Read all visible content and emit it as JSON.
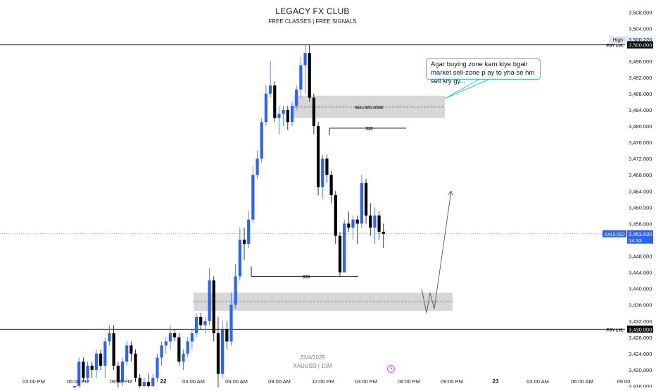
{
  "header": {
    "title": "LEGACY FX CLUB",
    "subtitle": "FREE CLASSES | FREE SIGNALS"
  },
  "footer": {
    "date": "22/4/2025",
    "symbol": "XAUUSD | 15M"
  },
  "colors": {
    "bull": "#2962ff",
    "bear": "#000000",
    "zone": "#c9c9c9",
    "callout_border": "#26c6da",
    "price_line": "#2962ff",
    "axis_text": "#131722"
  },
  "icons": {
    "footer_badge": "lightning-icon"
  },
  "chart_data": {
    "type": "candlestick",
    "symbol": "XAUUSD",
    "timeframe": "15M",
    "ylim": [
      3413,
      3510
    ],
    "y_ticks": [
      3416,
      3420,
      3424,
      3428,
      3432,
      3436,
      3440,
      3444,
      3448,
      3452,
      3456,
      3460,
      3464,
      3468,
      3472,
      3476,
      3480,
      3484,
      3488,
      3492,
      3496,
      3500,
      3504,
      3508
    ],
    "x_ticks": [
      "03:00 PM",
      "06:00 PM",
      "09:00 PM",
      "22",
      "03:00 AM",
      "06:00 AM",
      "09:00 AM",
      "12:00 PM",
      "03:00 PM",
      "06:00 PM",
      "09:00 PM",
      "23",
      "03:00 AM",
      "06:00 AM",
      "09:00"
    ],
    "candles": [
      {
        "o": 3414,
        "h": 3416,
        "l": 3414,
        "c": 3416
      },
      {
        "o": 3416,
        "h": 3423,
        "l": 3414,
        "c": 3422
      },
      {
        "o": 3422,
        "h": 3423,
        "l": 3417,
        "c": 3418
      },
      {
        "o": 3418,
        "h": 3422,
        "l": 3417,
        "c": 3421
      },
      {
        "o": 3421,
        "h": 3422,
        "l": 3418,
        "c": 3420
      },
      {
        "o": 3420,
        "h": 3425,
        "l": 3418,
        "c": 3424
      },
      {
        "o": 3424,
        "h": 3425,
        "l": 3420,
        "c": 3421
      },
      {
        "o": 3421,
        "h": 3428,
        "l": 3418,
        "c": 3427
      },
      {
        "o": 3427,
        "h": 3431,
        "l": 3426,
        "c": 3429
      },
      {
        "o": 3429,
        "h": 3431,
        "l": 3420,
        "c": 3421
      },
      {
        "o": 3421,
        "h": 3422,
        "l": 3415,
        "c": 3417
      },
      {
        "o": 3417,
        "h": 3423,
        "l": 3416,
        "c": 3422
      },
      {
        "o": 3422,
        "h": 3427,
        "l": 3421,
        "c": 3426
      },
      {
        "o": 3426,
        "h": 3427,
        "l": 3422,
        "c": 3424
      },
      {
        "o": 3424,
        "h": 3425,
        "l": 3417,
        "c": 3418
      },
      {
        "o": 3418,
        "h": 3419,
        "l": 3415,
        "c": 3416
      },
      {
        "o": 3416,
        "h": 3418,
        "l": 3414,
        "c": 3417
      },
      {
        "o": 3417,
        "h": 3419,
        "l": 3415,
        "c": 3416
      },
      {
        "o": 3416,
        "h": 3419,
        "l": 3415,
        "c": 3418
      },
      {
        "o": 3418,
        "h": 3424,
        "l": 3417,
        "c": 3423
      },
      {
        "o": 3423,
        "h": 3427,
        "l": 3421,
        "c": 3426
      },
      {
        "o": 3426,
        "h": 3428,
        "l": 3424,
        "c": 3427
      },
      {
        "o": 3427,
        "h": 3431,
        "l": 3425,
        "c": 3429
      },
      {
        "o": 3429,
        "h": 3430,
        "l": 3427,
        "c": 3428
      },
      {
        "o": 3428,
        "h": 3429,
        "l": 3421,
        "c": 3422
      },
      {
        "o": 3422,
        "h": 3425,
        "l": 3420,
        "c": 3424
      },
      {
        "o": 3424,
        "h": 3428,
        "l": 3423,
        "c": 3427
      },
      {
        "o": 3427,
        "h": 3430,
        "l": 3425,
        "c": 3429
      },
      {
        "o": 3429,
        "h": 3434,
        "l": 3428,
        "c": 3433
      },
      {
        "o": 3433,
        "h": 3434,
        "l": 3430,
        "c": 3431
      },
      {
        "o": 3431,
        "h": 3433,
        "l": 3429,
        "c": 3432
      },
      {
        "o": 3432,
        "h": 3445,
        "l": 3431,
        "c": 3442
      },
      {
        "o": 3442,
        "h": 3443,
        "l": 3427,
        "c": 3429
      },
      {
        "o": 3429,
        "h": 3433,
        "l": 3413,
        "c": 3419
      },
      {
        "o": 3419,
        "h": 3432,
        "l": 3418,
        "c": 3430
      },
      {
        "o": 3430,
        "h": 3432,
        "l": 3425,
        "c": 3427
      },
      {
        "o": 3427,
        "h": 3439,
        "l": 3426,
        "c": 3436
      },
      {
        "o": 3436,
        "h": 3446,
        "l": 3435,
        "c": 3443
      },
      {
        "o": 3443,
        "h": 3455,
        "l": 3442,
        "c": 3452
      },
      {
        "o": 3452,
        "h": 3455,
        "l": 3447,
        "c": 3451
      },
      {
        "o": 3451,
        "h": 3459,
        "l": 3450,
        "c": 3457
      },
      {
        "o": 3457,
        "h": 3470,
        "l": 3456,
        "c": 3468
      },
      {
        "o": 3468,
        "h": 3474,
        "l": 3467,
        "c": 3472
      },
      {
        "o": 3472,
        "h": 3482,
        "l": 3471,
        "c": 3481
      },
      {
        "o": 3481,
        "h": 3490,
        "l": 3480,
        "c": 3488
      },
      {
        "o": 3488,
        "h": 3496,
        "l": 3487,
        "c": 3490
      },
      {
        "o": 3490,
        "h": 3491,
        "l": 3481,
        "c": 3482
      },
      {
        "o": 3482,
        "h": 3485,
        "l": 3478,
        "c": 3483
      },
      {
        "o": 3483,
        "h": 3485,
        "l": 3480,
        "c": 3484
      },
      {
        "o": 3484,
        "h": 3485,
        "l": 3479,
        "c": 3481
      },
      {
        "o": 3481,
        "h": 3486,
        "l": 3480,
        "c": 3485
      },
      {
        "o": 3485,
        "h": 3490,
        "l": 3484,
        "c": 3489
      },
      {
        "o": 3489,
        "h": 3497,
        "l": 3487,
        "c": 3495
      },
      {
        "o": 3495,
        "h": 3500,
        "l": 3488,
        "c": 3498
      },
      {
        "o": 3498,
        "h": 3500,
        "l": 3486,
        "c": 3487
      },
      {
        "o": 3487,
        "h": 3488,
        "l": 3478,
        "c": 3480
      },
      {
        "o": 3480,
        "h": 3481,
        "l": 3463,
        "c": 3465
      },
      {
        "o": 3465,
        "h": 3473,
        "l": 3462,
        "c": 3472
      },
      {
        "o": 3472,
        "h": 3473,
        "l": 3466,
        "c": 3468
      },
      {
        "o": 3468,
        "h": 3469,
        "l": 3461,
        "c": 3463
      },
      {
        "o": 3463,
        "h": 3464,
        "l": 3451,
        "c": 3453
      },
      {
        "o": 3453,
        "h": 3454,
        "l": 3443,
        "c": 3444
      },
      {
        "o": 3444,
        "h": 3457,
        "l": 3444,
        "c": 3456
      },
      {
        "o": 3456,
        "h": 3459,
        "l": 3454,
        "c": 3455
      },
      {
        "o": 3455,
        "h": 3458,
        "l": 3452,
        "c": 3457
      },
      {
        "o": 3457,
        "h": 3458,
        "l": 3451,
        "c": 3456
      },
      {
        "o": 3456,
        "h": 3468,
        "l": 3455,
        "c": 3466
      },
      {
        "o": 3466,
        "h": 3467,
        "l": 3456,
        "c": 3458
      },
      {
        "o": 3458,
        "h": 3461,
        "l": 3453,
        "c": 3455
      },
      {
        "o": 3455,
        "h": 3460,
        "l": 3451,
        "c": 3458
      },
      {
        "o": 3458,
        "h": 3459,
        "l": 3452,
        "c": 3454
      },
      {
        "o": 3454,
        "h": 3456,
        "l": 3450,
        "c": 3453.5
      }
    ],
    "current_price": {
      "label": "XAUUSD",
      "value": "3,453.530",
      "countdown": "14:33"
    },
    "high": {
      "label": "High",
      "value": "3,500.220"
    },
    "psy_levels": [
      {
        "label": "PSY LVL",
        "price": 3500,
        "value": "3,500.000"
      },
      {
        "label": "PSY LVL",
        "price": 3430,
        "value": "3,430.000"
      }
    ],
    "zones": [
      {
        "label": "SELLING ZONE",
        "top": 3487.5,
        "bottom": 3482,
        "mid": 3484.7
      },
      {
        "label": "",
        "top": 3439,
        "bottom": 3434.5,
        "mid": 3436.7
      }
    ],
    "liquidity_lines": [
      {
        "label": "$$$",
        "price": 3479.5
      },
      {
        "label": "$$$",
        "price": 3443
      }
    ],
    "projection": [
      [
        3437,
        3436
      ],
      [
        3435,
        3436
      ],
      [
        3461,
        3464
      ]
    ],
    "callout": "Agar buying zone kam kiye bgair market sell-zone p ay to yha se hm sell kry gy..."
  }
}
